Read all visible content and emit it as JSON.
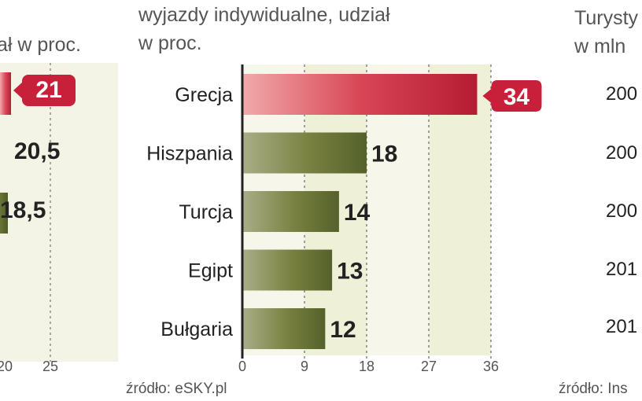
{
  "left_panel": {
    "subtitle": "ał w proc.",
    "values": [
      "21",
      "20,5",
      "18,5"
    ],
    "ticks": [
      "20",
      "25"
    ]
  },
  "chart_data": {
    "type": "bar",
    "orientation": "horizontal",
    "subtitle_line1": "wyjazdy indywidualne, udział",
    "subtitle_line2": "w proc.",
    "categories": [
      "Grecja",
      "Hiszpania",
      "Turcja",
      "Egipt",
      "Bułgaria"
    ],
    "values": [
      34,
      18,
      14,
      13,
      12
    ],
    "value_labels": [
      "34",
      "18",
      "14",
      "13",
      "12"
    ],
    "xlim": [
      0,
      36
    ],
    "ticks": [
      0,
      9,
      18,
      27,
      36
    ],
    "highlight_color": "#c8203a",
    "bar_color": "#6e7a3c",
    "source": "źródło: eSKY.pl"
  },
  "right_panel": {
    "title_line1": "Turysty",
    "title_line2": "w mln",
    "years": [
      "200",
      "200",
      "200",
      "201",
      "201"
    ],
    "source": "źródło: Ins"
  }
}
